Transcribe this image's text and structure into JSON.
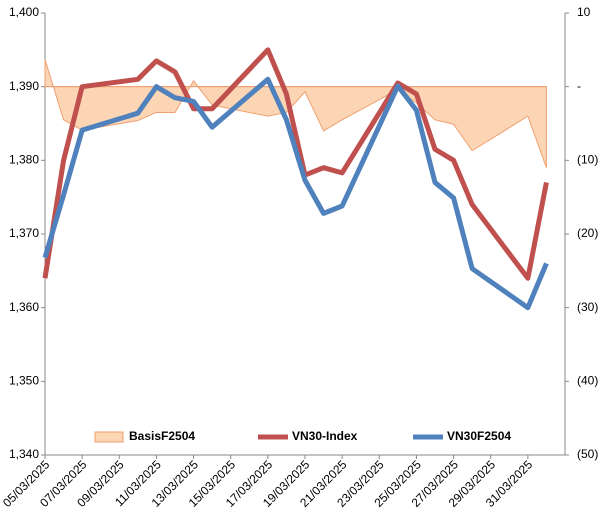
{
  "chart_data": {
    "type": "line",
    "x": [
      "05/03/2025",
      "06/03/2025",
      "07/03/2025",
      "10/03/2025",
      "11/03/2025",
      "12/03/2025",
      "13/03/2025",
      "14/03/2025",
      "17/03/2025",
      "18/03/2025",
      "19/03/2025",
      "20/03/2025",
      "21/03/2025",
      "24/03/2025",
      "25/03/2025",
      "26/03/2025",
      "27/03/2025",
      "28/03/2025",
      "31/03/2025",
      "01/04/2025"
    ],
    "xlim": [
      "05/03/2025",
      "02/04/2025"
    ],
    "xticks": [
      "05/03/2025",
      "07/03/2025",
      "09/03/2025",
      "11/03/2025",
      "13/03/2025",
      "15/03/2025",
      "17/03/2025",
      "19/03/2025",
      "21/03/2025",
      "23/03/2025",
      "25/03/2025",
      "27/03/2025",
      "29/03/2025",
      "31/03/2025"
    ],
    "ylim": [
      1340,
      1400
    ],
    "yticks": [
      {
        "value": 1340,
        "label": "1,340"
      },
      {
        "value": 1350,
        "label": "1,350"
      },
      {
        "value": 1360,
        "label": "1,360"
      },
      {
        "value": 1370,
        "label": "1,370"
      },
      {
        "value": 1380,
        "label": "1,380"
      },
      {
        "value": 1390,
        "label": "1,390"
      },
      {
        "value": 1400,
        "label": "1,400"
      }
    ],
    "y2lim": [
      -50,
      10
    ],
    "y2ticks": [
      {
        "value": -50,
        "label": "(50)"
      },
      {
        "value": -40,
        "label": "(40)"
      },
      {
        "value": -30,
        "label": "(30)"
      },
      {
        "value": -20,
        "label": "(20)"
      },
      {
        "value": -10,
        "label": "(10)"
      },
      {
        "value": 0,
        "label": "-"
      },
      10
    ],
    "series": [
      {
        "name": "BasisF2504",
        "type": "area",
        "axis": "y2",
        "color": "#fcd5b5",
        "values": [
          3.7,
          -4.5,
          -5.9,
          -4.6,
          -3.5,
          -3.5,
          0.8,
          -2.5,
          -4,
          -3.5,
          -0.7,
          -6,
          -4.5,
          -0.4,
          -2.2,
          -4.5,
          -5.1,
          -8.7,
          -4,
          -11
        ]
      },
      {
        "name": "VN30-Index",
        "type": "line",
        "axis": "y",
        "color": "#c0504d",
        "values": [
          1364,
          1380,
          1390,
          1391,
          1393.5,
          1392,
          1387,
          1387,
          1395,
          1389,
          1378,
          1379,
          1378.3,
          1390.5,
          1389,
          1381.5,
          1380,
          1374,
          1364,
          1377
        ]
      },
      {
        "name": "VN30F2504",
        "type": "line",
        "axis": "y",
        "color": "#4f81bd",
        "values": [
          1366.8,
          1375.3,
          1384.1,
          1386.4,
          1390,
          1388.5,
          1388,
          1384.5,
          1391,
          1385.5,
          1377.3,
          1372.8,
          1373.8,
          1390.1,
          1386.8,
          1377,
          1374.9,
          1365.3,
          1360,
          1366
        ]
      }
    ]
  }
}
